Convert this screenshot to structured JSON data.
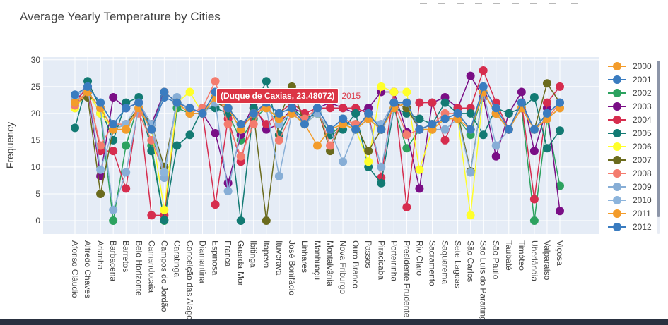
{
  "chart_data": {
    "type": "line",
    "title": "Average Yearly Temperature by Cities",
    "ylabel": "Frequency",
    "xlabel": "",
    "ylim": [
      -2.5,
      30.5
    ],
    "yticks": [
      0,
      5,
      10,
      15,
      20,
      25,
      30
    ],
    "grid": true,
    "legend_position": "right",
    "categories": [
      "Afonso Cláudio",
      "Alfredo Chaves",
      "Arianha",
      "Barbacena",
      "Barretos",
      "Belo Horizonte",
      "Camanducaia",
      "Campos do Jordão",
      "Caratinga",
      "Conceição das Alagoas",
      "Diamantina",
      "Espinosa",
      "Franca",
      "Guarda-Mor",
      "Ibitinga",
      "Itapeva",
      "Ituverava",
      "José Bonifácio",
      "Linhares",
      "Manhuaçu",
      "Montalvânia",
      "Nova Friburgo",
      "Ouro Branco",
      "Passos",
      "Piracicaba",
      "Porteirinha",
      "Presidente Prudente",
      "Rio Claro",
      "Sacramento",
      "Saquarema",
      "Sete Lagoas",
      "São Carlos",
      "São Luís do Paraitinga",
      "São Paulo",
      "Taubaté",
      "Timóteo",
      "Uberlândia",
      "Valparaíso",
      "Viçosa"
    ],
    "series_names": [
      "2000",
      "2001",
      "2002",
      "2003",
      "2004",
      "2005",
      "2006",
      "2007",
      "2008",
      "2009",
      "2010",
      "2011",
      "2012"
    ],
    "series_colors": [
      "#f39c2b",
      "#3a7cc0",
      "#2ca25f",
      "#7a0e86",
      "#d62d4e",
      "#127a73",
      "#ffff2a",
      "#6b6b1d",
      "#f47c6e",
      "#87aed6",
      "#8cb4dc",
      "#f39c2b",
      "#3a7cc0"
    ],
    "series": [
      {
        "name": "2000",
        "values": [
          21,
          24,
          21,
          17,
          17,
          21,
          17,
          24,
          22,
          20,
          20,
          23,
          21,
          17,
          20,
          21,
          19,
          20,
          18,
          20,
          17,
          18,
          17,
          19,
          17,
          21,
          22,
          17,
          17,
          19,
          19,
          17,
          24,
          20,
          17,
          21,
          17,
          19,
          21
        ]
      },
      {
        "name": "2001",
        "values": [
          23,
          25,
          22,
          18,
          21,
          22,
          17,
          23,
          22,
          21,
          20,
          24,
          21,
          18,
          20,
          22,
          20,
          21,
          18,
          21,
          17,
          19,
          17,
          20,
          17,
          22,
          22,
          17,
          18,
          19,
          20,
          17,
          25,
          21,
          17,
          22,
          17,
          20,
          22
        ]
      },
      {
        "name": "2002",
        "values": [
          22,
          24,
          20,
          0,
          14,
          22,
          14,
          0,
          21,
          20,
          20,
          23,
          20,
          15,
          19,
          21,
          19,
          20,
          18,
          20,
          16,
          18,
          17,
          19,
          17,
          21,
          13.5,
          17,
          17,
          19,
          19,
          16,
          24,
          20,
          17,
          21,
          0,
          19,
          6.5
        ]
      },
      {
        "name": "2003",
        "values": [
          22.5,
          24.5,
          8.3,
          23,
          21,
          22,
          18,
          24,
          22,
          21,
          20,
          16.3,
          7,
          16,
          22,
          17,
          18,
          21,
          20,
          21,
          22,
          21,
          20,
          21,
          24,
          24,
          16.5,
          6,
          22,
          23,
          21,
          27,
          23,
          12,
          20,
          24,
          13,
          21,
          1.8
        ]
      },
      {
        "name": "2004",
        "values": [
          22,
          25,
          13,
          13,
          6,
          22,
          1,
          1,
          22,
          21,
          20,
          3,
          19,
          11,
          21,
          18,
          20,
          22,
          20,
          21,
          21,
          21,
          21,
          20,
          8,
          24,
          2.5,
          22,
          22,
          15,
          21,
          21,
          28,
          22,
          17,
          22,
          4,
          22,
          25
        ]
      },
      {
        "name": "2005",
        "values": [
          17.3,
          26,
          21,
          15,
          22,
          23,
          13,
          0.1,
          14,
          16,
          21,
          21,
          20,
          0,
          21,
          26,
          16,
          21,
          19,
          20,
          16,
          17,
          20,
          10,
          7,
          21,
          20,
          19,
          18,
          22,
          20,
          20,
          16,
          21,
          20,
          21,
          23,
          13.5,
          16.8
        ]
      },
      {
        "name": "2006",
        "values": [
          21,
          24,
          20,
          17,
          17,
          21,
          17,
          2,
          22,
          24,
          20,
          23,
          21,
          17,
          20,
          21,
          19,
          20,
          18,
          20,
          17,
          18,
          17,
          11,
          25,
          24,
          24,
          9.5,
          17,
          19,
          19,
          1,
          24,
          20,
          17,
          21,
          17,
          19,
          21
        ]
      },
      {
        "name": "2007",
        "values": [
          22,
          23,
          5,
          17,
          18,
          21,
          18,
          10,
          22,
          20,
          20,
          22,
          21,
          18,
          20,
          0,
          19,
          25,
          18,
          21,
          13,
          19,
          18,
          13,
          17,
          22,
          21,
          17,
          18,
          19,
          20,
          9.2,
          24,
          20,
          17,
          22,
          17,
          25.6,
          22
        ]
      },
      {
        "name": "2008",
        "values": [
          21.5,
          24,
          14,
          18,
          18,
          20,
          15,
          9,
          22,
          20,
          21,
          26,
          18,
          12,
          18,
          23,
          15,
          20,
          19,
          21,
          14,
          19,
          18,
          19,
          18,
          22,
          16,
          17,
          18,
          20,
          20,
          17,
          24,
          20,
          17,
          21,
          17,
          19,
          22
        ]
      },
      {
        "name": "2009",
        "values": [
          22,
          24,
          21,
          2,
          9,
          21,
          17,
          8,
          23,
          20,
          20,
          22,
          5.5,
          17,
          20,
          21,
          8.3,
          20,
          18,
          20,
          17,
          11,
          17,
          19,
          10,
          21,
          22,
          17,
          17,
          17,
          19,
          9,
          24,
          14,
          17,
          21,
          17,
          19,
          21
        ]
      },
      {
        "name": "2010",
        "values": [
          23,
          25,
          9.5,
          17,
          18,
          22,
          18,
          9,
          22,
          21,
          20,
          23,
          21,
          17,
          20,
          21,
          18,
          20,
          18,
          21,
          17,
          19,
          17,
          19,
          18,
          22,
          22,
          17,
          18,
          19,
          20,
          17,
          25,
          21,
          17,
          22,
          17,
          20,
          22
        ]
      },
      {
        "name": "2011",
        "values": [
          22,
          24,
          21,
          17,
          17,
          21,
          17,
          24,
          22,
          20,
          20,
          23,
          21,
          17,
          20,
          21,
          19,
          20,
          18,
          14,
          17,
          18,
          17,
          19,
          17,
          21,
          22,
          17,
          17,
          19,
          19,
          17,
          24,
          20,
          17,
          21,
          17,
          19,
          21
        ]
      },
      {
        "name": "2012",
        "values": [
          23.5,
          25,
          22,
          18,
          21,
          22,
          17,
          24,
          22,
          21,
          20,
          24,
          21,
          18,
          20,
          22,
          20,
          21,
          18,
          21,
          17,
          19,
          17,
          20,
          17,
          22,
          22,
          17,
          18,
          19,
          20,
          17,
          25,
          21,
          17,
          22,
          17,
          20,
          22
        ]
      }
    ],
    "tooltip": {
      "text": "(Duque de Caxias, 23.48072)",
      "series": "2015"
    }
  }
}
